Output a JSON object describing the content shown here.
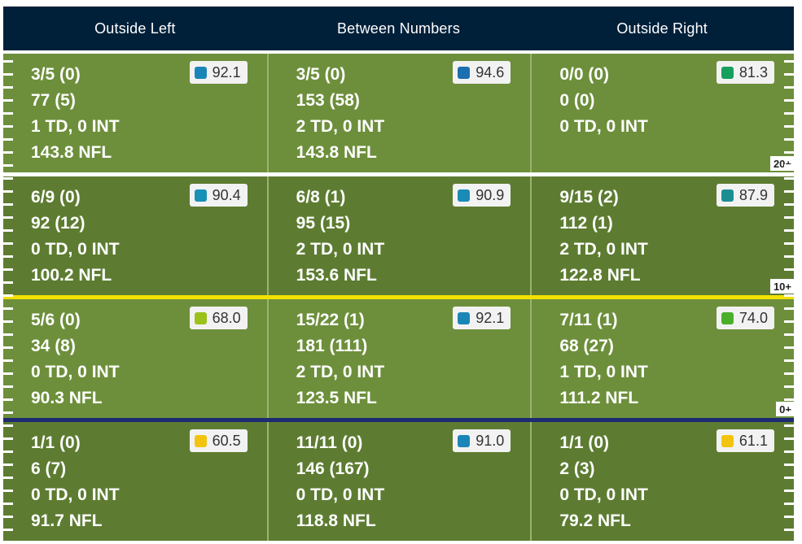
{
  "columns": [
    "Outside Left",
    "Between Numbers",
    "Outside Right"
  ],
  "zones": [
    {
      "shade": "light",
      "yardline": "20+",
      "divider_color": "#ffffff",
      "cells": [
        {
          "comp": "3/5 (0)",
          "yards": "77 (5)",
          "tds": "1 TD, 0 INT",
          "rating": "143.8 NFL",
          "grade": "92.1",
          "grade_color": "#1a86b8"
        },
        {
          "comp": "3/5 (0)",
          "yards": "153 (58)",
          "tds": "2 TD, 0 INT",
          "rating": "143.8 NFL",
          "grade": "94.6",
          "grade_color": "#1a6fb0"
        },
        {
          "comp": "0/0 (0)",
          "yards": "0 (0)",
          "tds": "0 TD, 0 INT",
          "rating": "",
          "grade": "81.3",
          "grade_color": "#17a05c"
        }
      ]
    },
    {
      "shade": "dark",
      "yardline": "10+",
      "divider_color": "#f2e200",
      "cells": [
        {
          "comp": "6/9 (0)",
          "yards": "92 (12)",
          "tds": "0 TD, 0 INT",
          "rating": "100.2 NFL",
          "grade": "90.4",
          "grade_color": "#1990b6"
        },
        {
          "comp": "6/8 (1)",
          "yards": "95 (15)",
          "tds": "2 TD, 0 INT",
          "rating": "153.6 NFL",
          "grade": "90.9",
          "grade_color": "#1a8ab6"
        },
        {
          "comp": "9/15 (2)",
          "yards": "112 (1)",
          "tds": "2 TD, 0 INT",
          "rating": "122.8 NFL",
          "grade": "87.9",
          "grade_color": "#1b8e94"
        }
      ]
    },
    {
      "shade": "light",
      "yardline": "0+",
      "divider_color": "#1d2a73",
      "cells": [
        {
          "comp": "5/6 (0)",
          "yards": "34 (8)",
          "tds": "0 TD, 0 INT",
          "rating": "90.3 NFL",
          "grade": "68.0",
          "grade_color": "#9bc21a"
        },
        {
          "comp": "15/22 (1)",
          "yards": "181 (111)",
          "tds": "2 TD, 0 INT",
          "rating": "123.5 NFL",
          "grade": "92.1",
          "grade_color": "#1a86b8"
        },
        {
          "comp": "7/11 (1)",
          "yards": "68 (27)",
          "tds": "1 TD, 0 INT",
          "rating": "111.2 NFL",
          "grade": "74.0",
          "grade_color": "#4caf2a"
        }
      ]
    },
    {
      "shade": "dark",
      "yardline": "",
      "divider_color": "",
      "cells": [
        {
          "comp": "1/1 (0)",
          "yards": "6 (7)",
          "tds": "0 TD, 0 INT",
          "rating": "91.7 NFL",
          "grade": "60.5",
          "grade_color": "#f2c40f"
        },
        {
          "comp": "11/11 (0)",
          "yards": "146 (167)",
          "tds": "0 TD, 0 INT",
          "rating": "118.8 NFL",
          "grade": "91.0",
          "grade_color": "#1a86b8"
        },
        {
          "comp": "1/1 (0)",
          "yards": "2 (3)",
          "tds": "0 TD, 0 INT",
          "rating": "79.2 NFL",
          "grade": "61.1",
          "grade_color": "#f2c40f"
        }
      ]
    }
  ]
}
